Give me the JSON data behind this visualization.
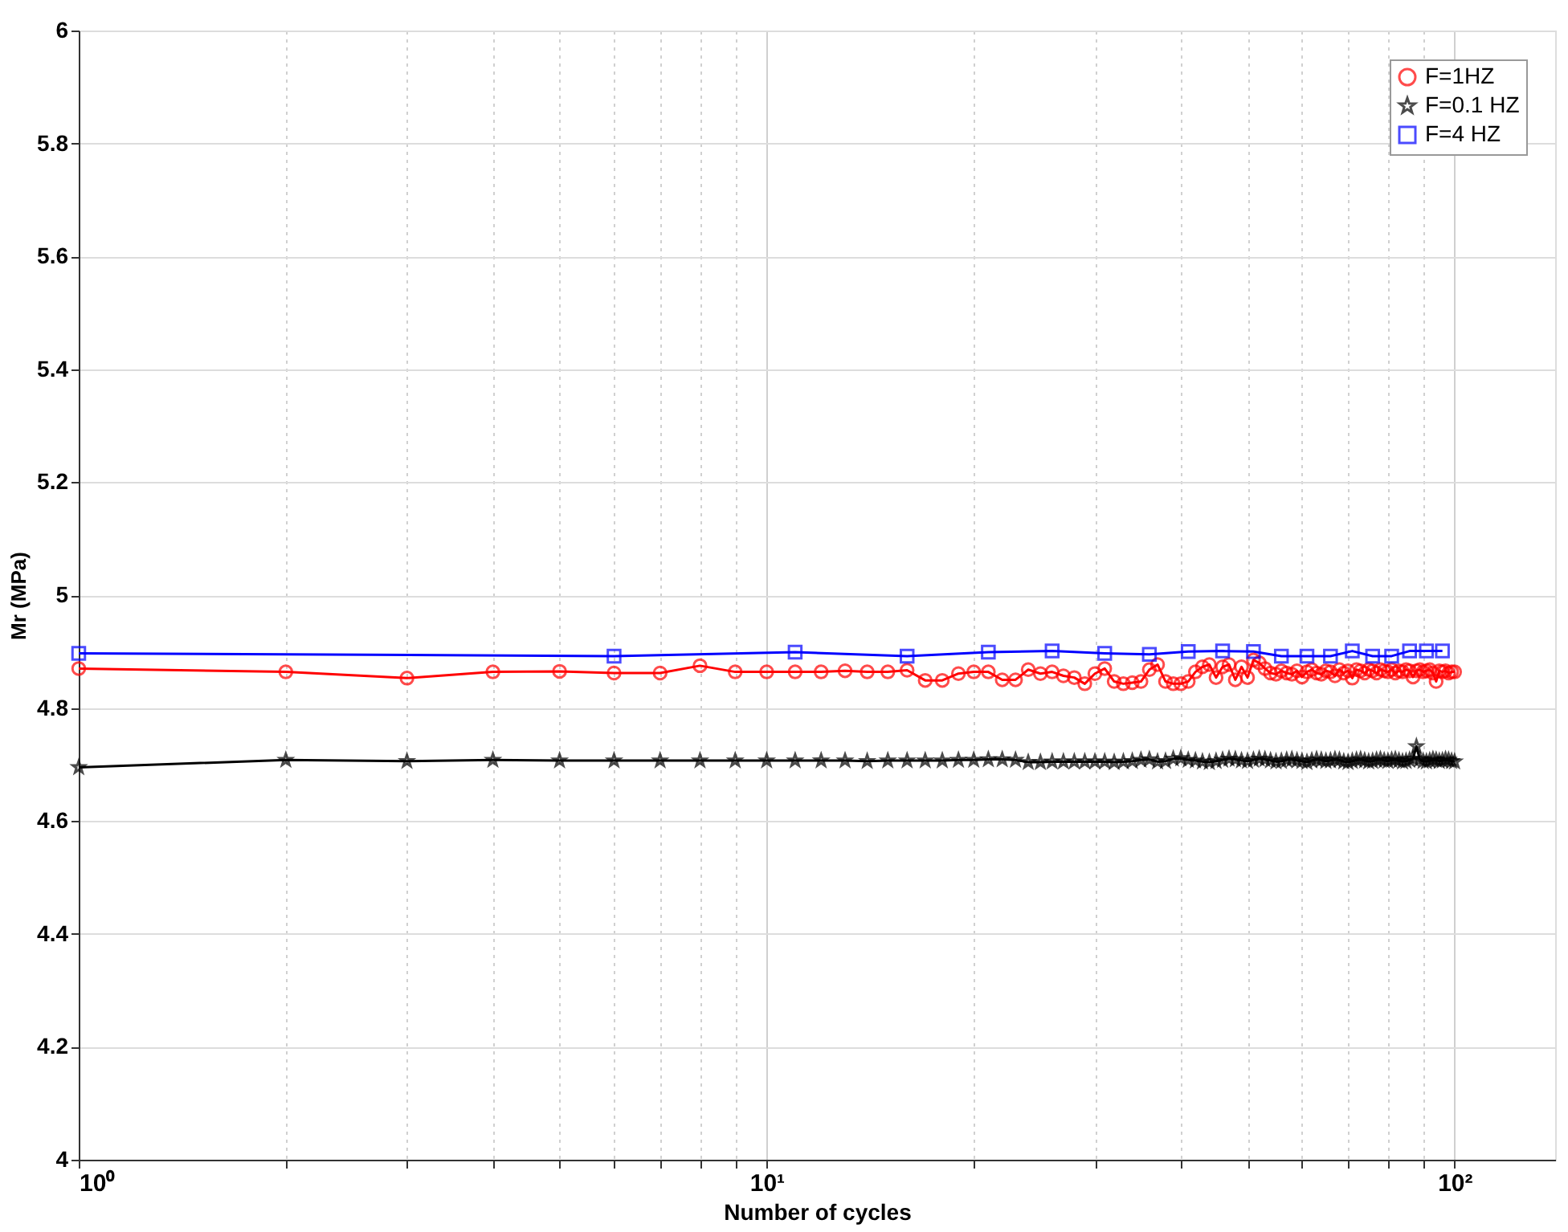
{
  "chart_data": {
    "type": "line",
    "xlabel": "Number of cycles",
    "ylabel": "Mr (MPa)",
    "log": "x",
    "grid": true,
    "legend": "top right",
    "line_style": "solid",
    "xlim": [
      1,
      140
    ],
    "xticks": [
      {
        "value": 1,
        "label": "10⁰"
      },
      {
        "value": 2,
        "label": null
      },
      {
        "value": 3,
        "label": null
      },
      {
        "value": 4,
        "label": null
      },
      {
        "value": 5,
        "label": null
      },
      {
        "value": 6,
        "label": null
      },
      {
        "value": 7,
        "label": null
      },
      {
        "value": 8,
        "label": null
      },
      {
        "value": 9,
        "label": null
      },
      {
        "value": 10,
        "label": "10¹"
      },
      {
        "value": 20,
        "label": null
      },
      {
        "value": 30,
        "label": null
      },
      {
        "value": 40,
        "label": null
      },
      {
        "value": 50,
        "label": null
      },
      {
        "value": 60,
        "label": null
      },
      {
        "value": 70,
        "label": null
      },
      {
        "value": 80,
        "label": null
      },
      {
        "value": 90,
        "label": null
      },
      {
        "value": 100,
        "label": "10²"
      }
    ],
    "ylim": [
      4,
      6
    ],
    "yticks": [
      4,
      4.2,
      4.4,
      4.6,
      4.8,
      5,
      5.2,
      5.4,
      5.6,
      5.8,
      6
    ],
    "series": [
      {
        "name": "F=1HZ",
        "color": "#ff0000",
        "marker": "circle",
        "x": [
          1,
          2,
          3,
          4,
          5,
          6,
          7,
          8,
          9,
          10,
          11,
          12,
          13,
          14,
          15,
          16,
          17,
          18,
          19,
          20,
          21,
          22,
          23,
          24,
          25,
          26,
          27,
          28,
          29,
          30,
          31,
          32,
          33,
          34,
          35,
          36,
          37,
          38,
          39,
          40,
          41,
          42,
          43,
          44,
          45,
          46,
          47,
          48,
          49,
          50,
          51,
          52,
          53,
          54,
          55,
          56,
          57,
          58,
          59,
          60,
          61,
          62,
          63,
          64,
          65,
          66,
          67,
          68,
          69,
          70,
          71,
          72,
          73,
          74,
          75,
          76,
          77,
          78,
          79,
          80,
          81,
          82,
          83,
          84,
          85,
          86,
          87,
          88,
          89,
          90,
          91,
          92,
          93,
          94,
          95,
          96,
          97,
          98,
          99,
          100
        ],
        "values": [
          4.87,
          4.864,
          4.853,
          4.864,
          4.865,
          4.862,
          4.862,
          4.875,
          4.864,
          4.864,
          4.864,
          4.864,
          4.866,
          4.864,
          4.864,
          4.867,
          4.849,
          4.849,
          4.861,
          4.864,
          4.864,
          4.85,
          4.85,
          4.868,
          4.861,
          4.864,
          4.857,
          4.854,
          4.843,
          4.861,
          4.87,
          4.847,
          4.843,
          4.845,
          4.847,
          4.868,
          4.877,
          4.847,
          4.843,
          4.843,
          4.847,
          4.864,
          4.873,
          4.877,
          4.854,
          4.873,
          4.877,
          4.85,
          4.873,
          4.854,
          4.885,
          4.88,
          4.87,
          4.862,
          4.86,
          4.866,
          4.862,
          4.86,
          4.866,
          4.855,
          4.864,
          4.868,
          4.862,
          4.86,
          4.866,
          4.864,
          4.857,
          4.868,
          4.862,
          4.866,
          4.853,
          4.868,
          4.866,
          4.862,
          4.868,
          4.866,
          4.862,
          4.868,
          4.866,
          4.864,
          4.868,
          4.862,
          4.866,
          4.864,
          4.868,
          4.866,
          4.855,
          4.866,
          4.868,
          4.864,
          4.866,
          4.868,
          4.862,
          4.847,
          4.866,
          4.864,
          4.866,
          4.862,
          4.864,
          4.864
        ]
      },
      {
        "name": "F=0.1 HZ",
        "color": "#000000",
        "marker": "star",
        "x": [
          1,
          2,
          3,
          4,
          5,
          6,
          7,
          8,
          9,
          10,
          11,
          12,
          13,
          14,
          15,
          16,
          17,
          18,
          19,
          20,
          21,
          22,
          23,
          24,
          25,
          26,
          27,
          28,
          29,
          30,
          31,
          32,
          33,
          34,
          35,
          36,
          37,
          38,
          39,
          40,
          41,
          42,
          43,
          44,
          45,
          46,
          47,
          48,
          49,
          50,
          51,
          52,
          53,
          54,
          55,
          56,
          57,
          58,
          59,
          60,
          61,
          62,
          63,
          64,
          65,
          66,
          67,
          68,
          69,
          70,
          71,
          72,
          73,
          74,
          75,
          76,
          77,
          78,
          79,
          80,
          81,
          82,
          83,
          84,
          85,
          86,
          87,
          88,
          89,
          90,
          91,
          92,
          93,
          94,
          95,
          96,
          97,
          98,
          99,
          100
        ],
        "values": [
          4.695,
          4.708,
          4.706,
          4.708,
          4.707,
          4.707,
          4.707,
          4.707,
          4.707,
          4.707,
          4.707,
          4.707,
          4.707,
          4.706,
          4.707,
          4.707,
          4.707,
          4.707,
          4.708,
          4.708,
          4.709,
          4.709,
          4.708,
          4.704,
          4.704,
          4.705,
          4.705,
          4.705,
          4.705,
          4.705,
          4.705,
          4.704,
          4.705,
          4.706,
          4.708,
          4.709,
          4.705,
          4.706,
          4.71,
          4.711,
          4.708,
          4.707,
          4.705,
          4.704,
          4.706,
          4.708,
          4.71,
          4.709,
          4.707,
          4.706,
          4.708,
          4.71,
          4.709,
          4.707,
          4.705,
          4.706,
          4.708,
          4.709,
          4.707,
          4.706,
          4.704,
          4.707,
          4.709,
          4.708,
          4.706,
          4.707,
          4.709,
          4.708,
          4.705,
          4.704,
          4.706,
          4.708,
          4.709,
          4.707,
          4.705,
          4.706,
          4.708,
          4.709,
          4.707,
          4.706,
          4.708,
          4.709,
          4.707,
          4.705,
          4.706,
          4.708,
          4.71,
          4.732,
          4.709,
          4.706,
          4.705,
          4.707,
          4.709,
          4.708,
          4.706,
          4.707,
          4.709,
          4.708,
          4.706,
          4.705
        ]
      },
      {
        "name": "F=4 HZ",
        "color": "#0000ff",
        "marker": "square",
        "x": [
          1,
          6,
          11,
          16,
          21,
          26,
          31,
          36,
          41,
          46,
          51,
          56,
          61,
          66,
          71,
          76,
          81,
          86,
          91,
          96
        ],
        "values": [
          4.897,
          4.892,
          4.899,
          4.892,
          4.899,
          4.901,
          4.897,
          4.895,
          4.9,
          4.901,
          4.9,
          4.892,
          4.892,
          4.892,
          4.901,
          4.892,
          4.892,
          4.901,
          4.901,
          4.901
        ]
      }
    ]
  }
}
